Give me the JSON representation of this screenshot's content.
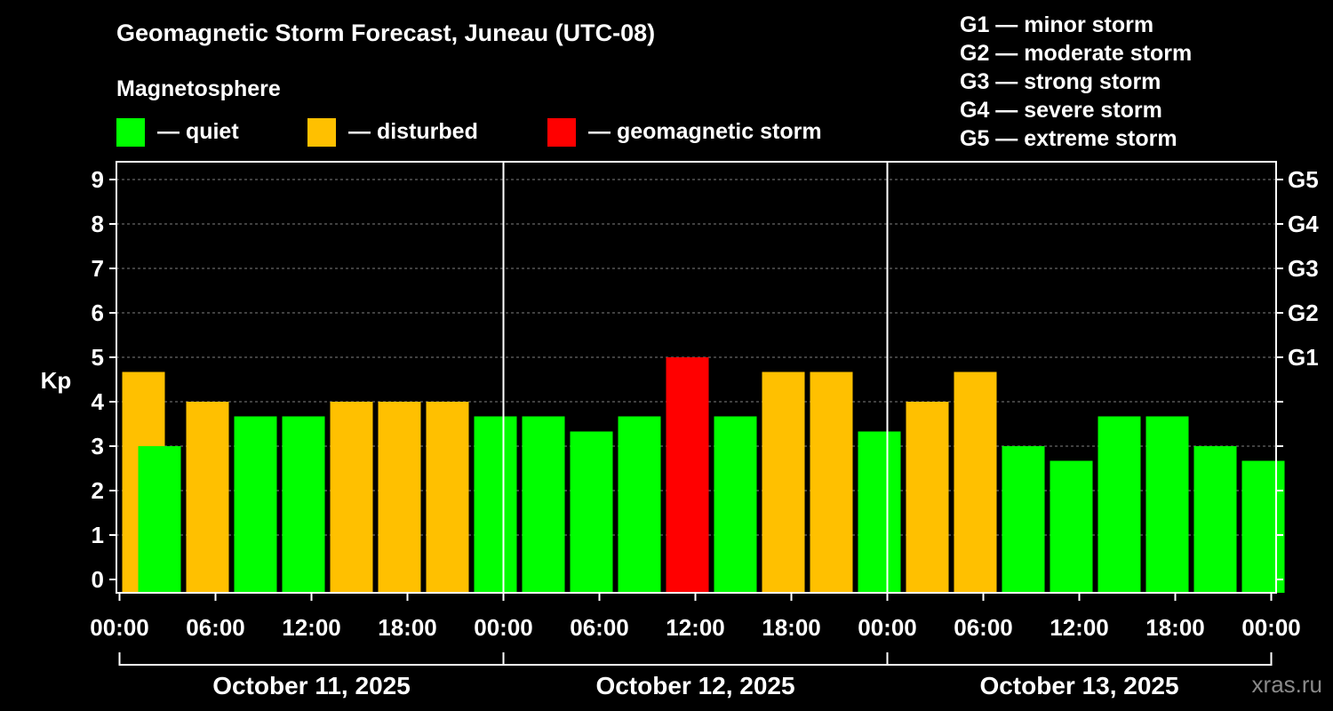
{
  "header": {
    "title": "Geomagnetic Storm Forecast, Juneau (UTC-08)",
    "magnetosphere_label": "Magnetosphere"
  },
  "legend": {
    "items": [
      {
        "label": "— quiet",
        "color": "#00ff00"
      },
      {
        "label": "— disturbed",
        "color": "#ffc000"
      },
      {
        "label": "— geomagnetic storm",
        "color": "#ff0000"
      }
    ],
    "storm_levels": [
      "G1 — minor storm",
      "G2 — moderate storm",
      "G3 — strong storm",
      "G4 — severe storm",
      "G5 — extreme storm"
    ]
  },
  "watermark": "xras.ru",
  "chart_data": {
    "type": "bar",
    "ylabel": "Kp",
    "ylim": [
      0,
      9
    ],
    "yticks": [
      "0",
      "1",
      "2",
      "3",
      "4",
      "5",
      "6",
      "7",
      "8",
      "9"
    ],
    "right_ticks": [
      {
        "kp": 5,
        "label": "G1"
      },
      {
        "kp": 6,
        "label": "G2"
      },
      {
        "kp": 7,
        "label": "G3"
      },
      {
        "kp": 8,
        "label": "G4"
      },
      {
        "kp": 9,
        "label": "G5"
      }
    ],
    "xtick_labels": [
      "00:00",
      "06:00",
      "12:00",
      "18:00",
      "00:00",
      "06:00",
      "12:00",
      "18:00",
      "00:00",
      "06:00",
      "12:00",
      "18:00",
      "00:00"
    ],
    "days": [
      "October 11, 2025",
      "October 12, 2025",
      "October 13, 2025"
    ],
    "grid": true,
    "bars": [
      {
        "start_hour": 0,
        "kp": 4.67,
        "level": "disturbed"
      },
      {
        "start_hour": 1,
        "kp": 3.0,
        "level": "quiet"
      },
      {
        "start_hour": 4,
        "kp": 4.0,
        "level": "disturbed"
      },
      {
        "start_hour": 7,
        "kp": 3.67,
        "level": "quiet"
      },
      {
        "start_hour": 10,
        "kp": 3.67,
        "level": "quiet"
      },
      {
        "start_hour": 13,
        "kp": 4.0,
        "level": "disturbed"
      },
      {
        "start_hour": 16,
        "kp": 4.0,
        "level": "disturbed"
      },
      {
        "start_hour": 19,
        "kp": 4.0,
        "level": "disturbed"
      },
      {
        "start_hour": 22,
        "kp": 3.67,
        "level": "quiet"
      },
      {
        "start_hour": 25,
        "kp": 3.67,
        "level": "quiet"
      },
      {
        "start_hour": 28,
        "kp": 3.33,
        "level": "quiet"
      },
      {
        "start_hour": 31,
        "kp": 3.67,
        "level": "quiet"
      },
      {
        "start_hour": 34,
        "kp": 5.0,
        "level": "storm"
      },
      {
        "start_hour": 37,
        "kp": 3.67,
        "level": "quiet"
      },
      {
        "start_hour": 40,
        "kp": 4.67,
        "level": "disturbed"
      },
      {
        "start_hour": 43,
        "kp": 4.67,
        "level": "disturbed"
      },
      {
        "start_hour": 46,
        "kp": 3.33,
        "level": "quiet"
      },
      {
        "start_hour": 49,
        "kp": 4.0,
        "level": "disturbed"
      },
      {
        "start_hour": 52,
        "kp": 4.67,
        "level": "disturbed"
      },
      {
        "start_hour": 55,
        "kp": 3.0,
        "level": "quiet"
      },
      {
        "start_hour": 58,
        "kp": 2.67,
        "level": "quiet"
      },
      {
        "start_hour": 61,
        "kp": 3.67,
        "level": "quiet"
      },
      {
        "start_hour": 64,
        "kp": 3.67,
        "level": "quiet"
      },
      {
        "start_hour": 67,
        "kp": 3.0,
        "level": "quiet"
      },
      {
        "start_hour": 70,
        "kp": 2.67,
        "level": "quiet"
      }
    ]
  }
}
